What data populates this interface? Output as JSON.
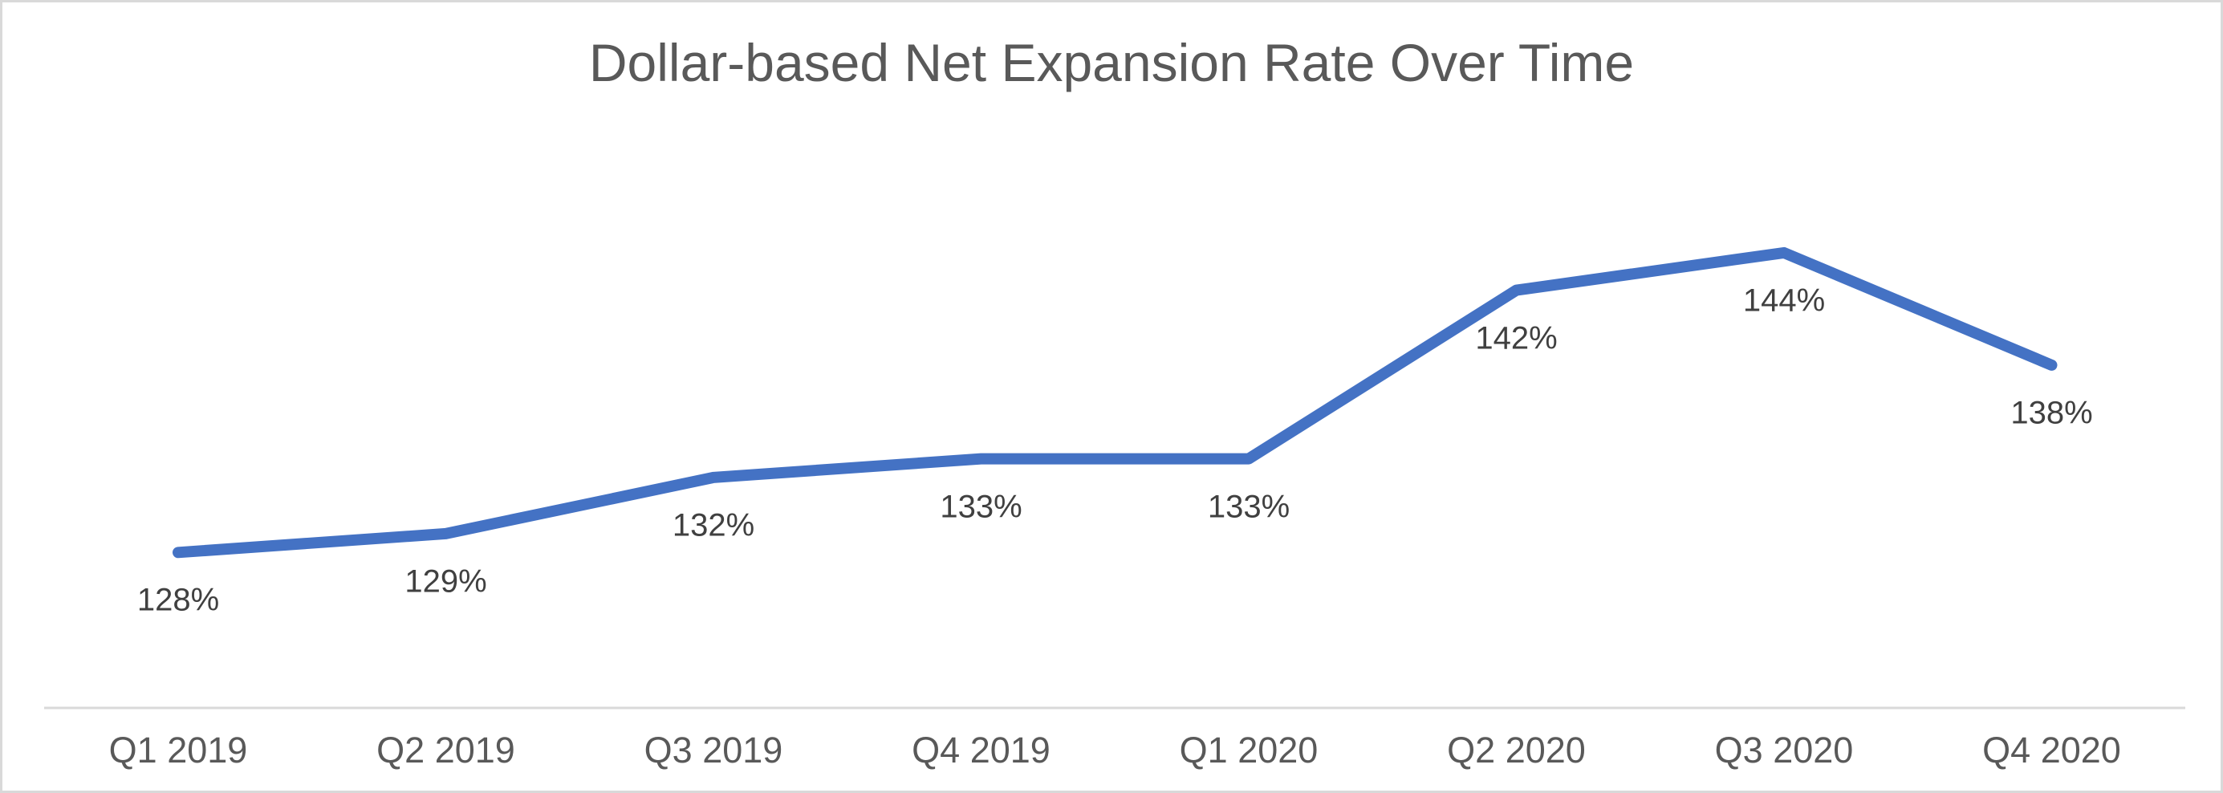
{
  "frame": {
    "background": "#ffffff",
    "border_color": "#d9d9d9"
  },
  "chart_data": {
    "type": "line",
    "title": "Dollar-based Net Expansion Rate Over Time",
    "categories": [
      "Q1 2019",
      "Q2 2019",
      "Q3 2019",
      "Q4 2019",
      "Q1 2020",
      "Q2 2020",
      "Q3 2020",
      "Q4 2020"
    ],
    "series": [
      {
        "name": "Dollar-based Net Expansion Rate",
        "values": [
          128,
          129,
          132,
          133,
          133,
          142,
          144,
          138
        ],
        "data_labels": [
          "128%",
          "129%",
          "132%",
          "133%",
          "133%",
          "142%",
          "144%",
          "138%"
        ],
        "color": "#4472C4"
      }
    ],
    "xlabel": "",
    "ylabel": "",
    "ylim": [
      120,
      150
    ],
    "value_unit": "%",
    "gridlines": false,
    "y_axis_visible": false,
    "legend": "none",
    "data_labels_position": "below",
    "colors": {
      "title": "#595959",
      "data_label": "#404040",
      "axis_label": "#595959",
      "axis_line": "#d9d9d9"
    }
  }
}
